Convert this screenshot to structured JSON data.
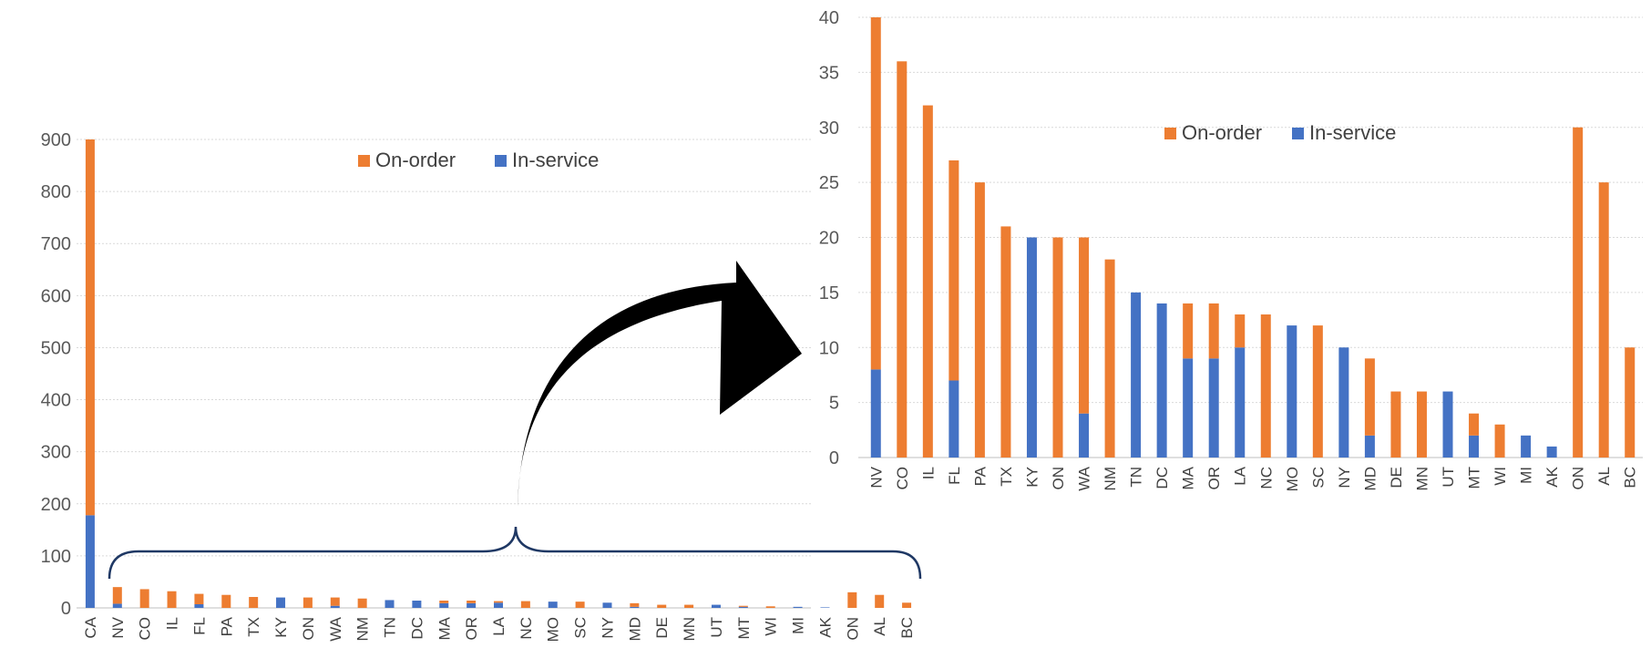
{
  "chart_data": [
    {
      "type": "bar",
      "stacked": true,
      "title": "",
      "xlabel": "",
      "ylabel": "",
      "ylim": [
        0,
        900
      ],
      "yticks": [
        0,
        100,
        200,
        300,
        400,
        500,
        600,
        700,
        800,
        900
      ],
      "grid": true,
      "legend_position": "top-center",
      "categories": [
        "CA",
        "NV",
        "CO",
        "IL",
        "FL",
        "PA",
        "TX",
        "KY",
        "ON",
        "WA",
        "NM",
        "TN",
        "DC",
        "MA",
        "OR",
        "LA",
        "NC",
        "MO",
        "SC",
        "NY",
        "MD",
        "DE",
        "MN",
        "UT",
        "MT",
        "WI",
        "MI",
        "AK",
        "ON",
        "AL",
        "BC"
      ],
      "series": [
        {
          "name": "In-service",
          "color": "#4472C4",
          "values": [
            178,
            8,
            0,
            0,
            7,
            0,
            0,
            20,
            0,
            4,
            0,
            15,
            14,
            9,
            9,
            10,
            0,
            12,
            0,
            10,
            2,
            0,
            0,
            6,
            2,
            0,
            2,
            1,
            0,
            0,
            0
          ]
        },
        {
          "name": "On-order",
          "color": "#ED7D31",
          "values": [
            722,
            32,
            36,
            32,
            20,
            25,
            21,
            0,
            20,
            16,
            18,
            0,
            0,
            5,
            5,
            3,
            13,
            0,
            12,
            0,
            7,
            6,
            6,
            0,
            2,
            3,
            0,
            0,
            30,
            25,
            10
          ]
        }
      ],
      "legend": [
        "On-order",
        "In-service"
      ]
    },
    {
      "type": "bar",
      "stacked": true,
      "title": "",
      "xlabel": "",
      "ylabel": "",
      "ylim": [
        0,
        40
      ],
      "yticks": [
        0,
        5,
        10,
        15,
        20,
        25,
        30,
        35,
        40
      ],
      "grid": true,
      "legend_position": "top-center",
      "categories": [
        "NV",
        "CO",
        "IL",
        "FL",
        "PA",
        "TX",
        "KY",
        "ON",
        "WA",
        "NM",
        "TN",
        "DC",
        "MA",
        "OR",
        "LA",
        "NC",
        "MO",
        "SC",
        "NY",
        "MD",
        "DE",
        "MN",
        "UT",
        "MT",
        "WI",
        "MI",
        "AK",
        "ON",
        "AL",
        "BC"
      ],
      "series": [
        {
          "name": "In-service",
          "color": "#4472C4",
          "values": [
            8,
            0,
            0,
            7,
            0,
            0,
            20,
            0,
            4,
            0,
            15,
            14,
            9,
            9,
            10,
            0,
            12,
            0,
            10,
            2,
            0,
            0,
            6,
            2,
            0,
            2,
            1,
            0,
            0,
            0
          ]
        },
        {
          "name": "On-order",
          "color": "#ED7D31",
          "values": [
            32,
            36,
            32,
            20,
            25,
            21,
            0,
            20,
            16,
            18,
            0,
            0,
            5,
            5,
            3,
            13,
            0,
            12,
            0,
            7,
            6,
            6,
            0,
            2,
            3,
            0,
            0,
            30,
            25,
            10
          ]
        }
      ],
      "legend": [
        "On-order",
        "In-service"
      ]
    }
  ],
  "annotations": {
    "brace_icon": "curly-brace-icon",
    "arrow_icon": "curved-arrow-icon",
    "arrow_color": "#000000",
    "brace_color": "#1F3864"
  }
}
